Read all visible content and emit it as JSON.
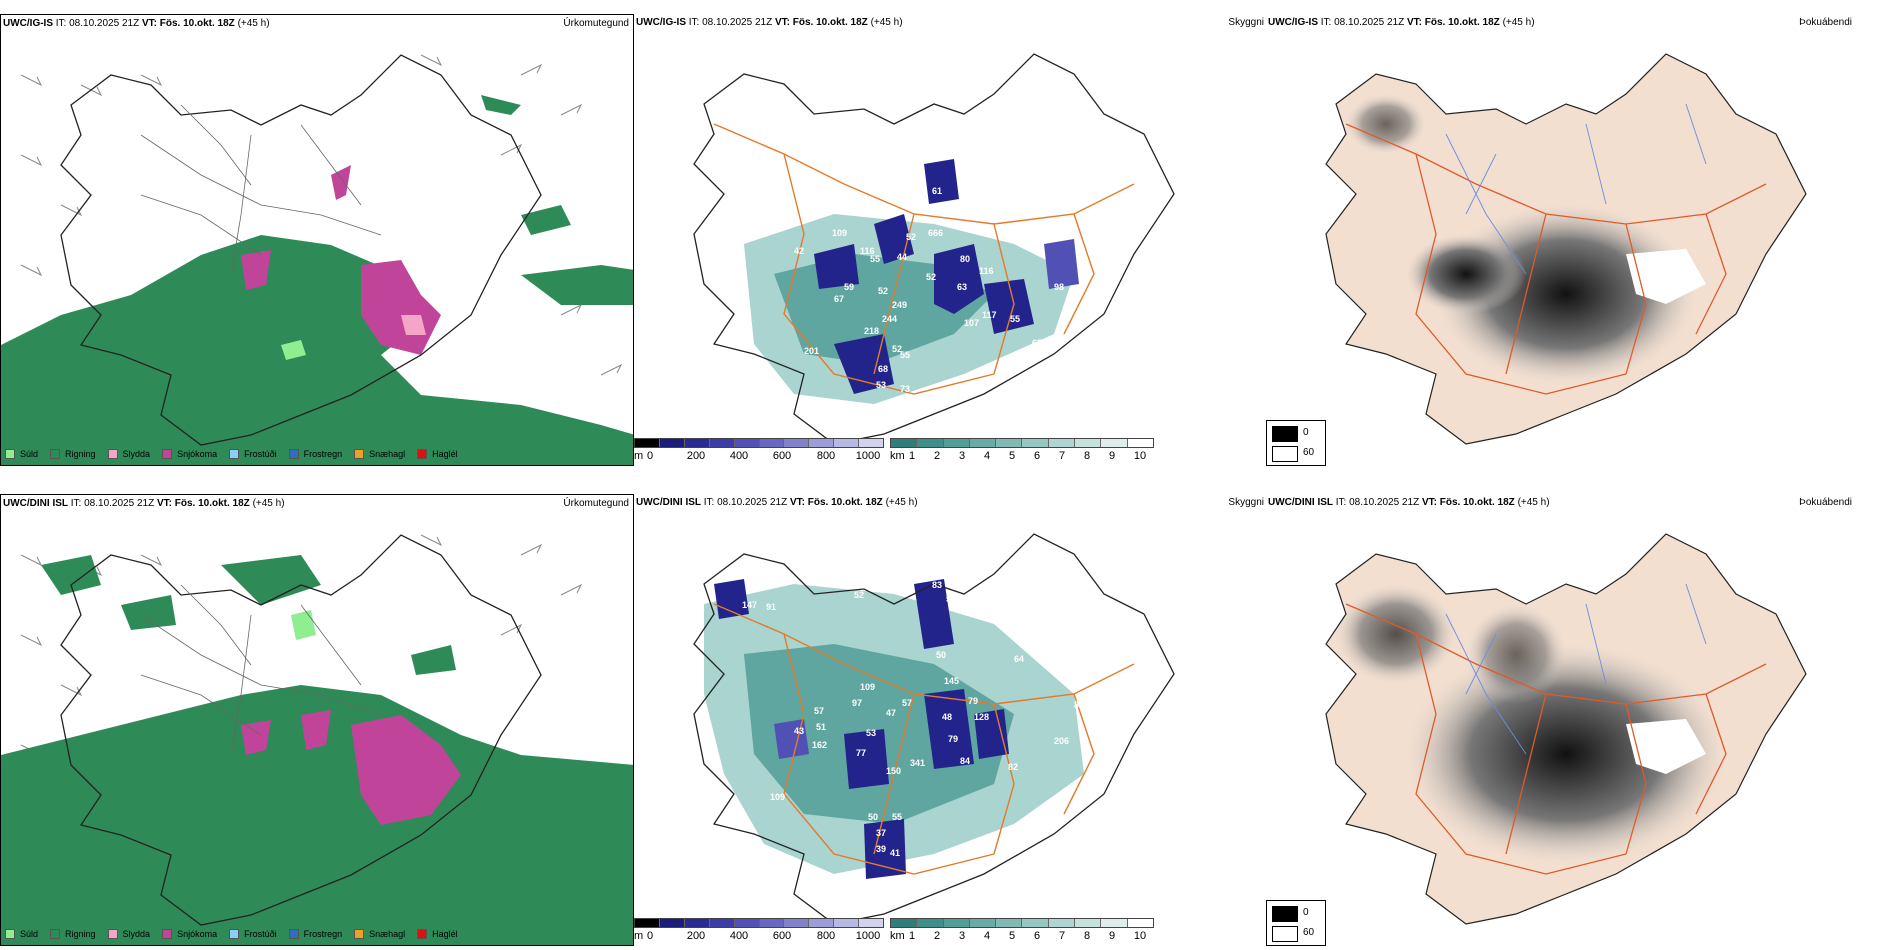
{
  "rows": [
    {
      "model": "UWC/IG-IS",
      "it_label": "IT:",
      "it_value": "08.10.2025 21Z",
      "vt_label": "VT:",
      "vt_value": "Fös. 10.okt. 18Z",
      "lead": "(+45 h)",
      "precip_title": "Úrkomutegund",
      "visibility_title": "Skyggni",
      "fog_title": "Þokuábendi",
      "cloud_labels": [
        "9",
        "42",
        "109",
        "116",
        "55",
        "59",
        "67",
        "52",
        "44",
        "52",
        "80",
        "116",
        "63",
        "107",
        "117",
        "55",
        "65",
        "249",
        "244",
        "218",
        "201",
        "52",
        "55",
        "68",
        "53",
        "73",
        "61",
        "666",
        "10",
        "98",
        "61",
        "52"
      ],
      "precip_legend": [
        "Súld",
        "Rigning",
        "Slydda",
        "Snjókoma",
        "Frostúði",
        "Frostregn",
        "Snæhagl",
        "Haglél"
      ],
      "ceiling_unit": "m",
      "ceiling_ticks": [
        "0",
        "200",
        "400",
        "600",
        "800",
        "1000"
      ],
      "vis_unit": "km",
      "vis_ticks": [
        "1",
        "2",
        "3",
        "4",
        "5",
        "6",
        "7",
        "8",
        "9",
        "10"
      ],
      "fog_legend": [
        "0",
        "60"
      ]
    },
    {
      "model": "UWC/DINI ISL",
      "it_label": "IT:",
      "it_value": "08.10.2025 21Z",
      "vt_label": "VT:",
      "vt_value": "Fös. 10.okt. 18Z",
      "lead": "(+45 h)",
      "precip_title": "Úrkomutegund",
      "visibility_title": "Skyggni",
      "fog_title": "Þokuábendi",
      "cloud_labels": [
        "147",
        "91",
        "52",
        "83",
        "53",
        "50",
        "109",
        "97",
        "57",
        "79",
        "57",
        "43",
        "51",
        "53",
        "47",
        "145",
        "48",
        "128",
        "79",
        "77",
        "162",
        "150",
        "341",
        "84",
        "206",
        "82",
        "109",
        "50",
        "55",
        "37",
        "39",
        "41",
        "64",
        "86"
      ],
      "precip_legend": [
        "Súld",
        "Rigning",
        "Slydda",
        "Snjókoma",
        "Frostúði",
        "Frostregn",
        "Snæhagl",
        "Haglél"
      ],
      "ceiling_unit": "m",
      "ceiling_ticks": [
        "0",
        "200",
        "400",
        "600",
        "800",
        "1000"
      ],
      "vis_unit": "km",
      "vis_ticks": [
        "1",
        "2",
        "3",
        "4",
        "5",
        "6",
        "7",
        "8",
        "9",
        "10"
      ],
      "fog_legend": [
        "0",
        "60"
      ]
    }
  ],
  "colors": {
    "sudl": "#90ee90",
    "rigning": "#2e8b57",
    "slydda": "#f4a6c8",
    "snjokoma": "#c0459a",
    "frostudi": "#87cefa",
    "frostregn": "#2f6fb5",
    "snaehagl": "#f0a020",
    "haglel": "#e01010",
    "ceiling_dark": "#23238c",
    "ceiling_mid": "#5050b5",
    "vis_teal": "#5fa5a0",
    "vis_light": "#a9d4cf",
    "roads": "#e47a2a",
    "land_beige": "#f2dfd0",
    "fog_dark": "#1a1a1a"
  }
}
